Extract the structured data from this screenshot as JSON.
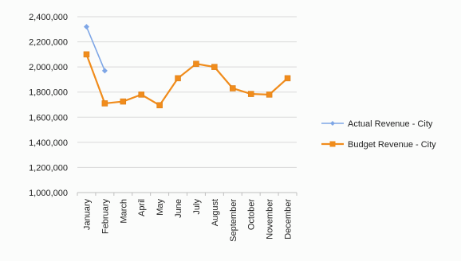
{
  "chart_data": {
    "type": "line",
    "categories": [
      "January",
      "February",
      "March",
      "April",
      "May",
      "June",
      "July",
      "August",
      "September",
      "October",
      "November",
      "December"
    ],
    "series": [
      {
        "name": "Actual Revenue - City",
        "color": "#7ea6e6",
        "marker": "diamond",
        "values": [
          2320000,
          1970000,
          null,
          null,
          null,
          null,
          null,
          null,
          null,
          null,
          null,
          null
        ]
      },
      {
        "name": "Budget Revenue - City",
        "color": "#f08c1c",
        "marker": "square",
        "values": [
          2100000,
          1710000,
          1725000,
          1780000,
          1695000,
          1910000,
          2025000,
          2000000,
          1830000,
          1785000,
          1780000,
          1910000
        ]
      }
    ],
    "y_ticks": [
      "2,400,000",
      "2,200,000",
      "2,000,000",
      "1,800,000",
      "1,600,000",
      "1,400,000",
      "1,200,000",
      "1,000,000"
    ],
    "ylim": [
      1000000,
      2400000
    ],
    "ystep": 200000,
    "grid": true,
    "legend_position": "right"
  }
}
